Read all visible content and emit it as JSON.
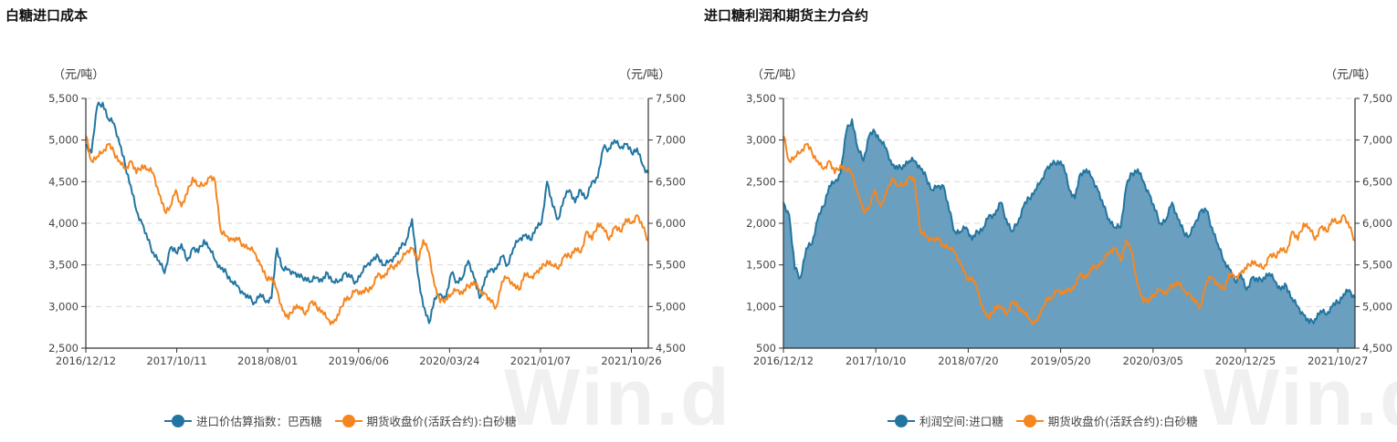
{
  "colors": {
    "blue": "#2275a0",
    "orange": "#f5861f",
    "area": "#6a9fbf",
    "grid": "#d9d9d9",
    "axis": "#333333"
  },
  "watermark": "Win.d",
  "chart_data": [
    {
      "type": "line",
      "title": "白糖进口成本",
      "y_unit_left": "（元/吨）",
      "y_unit_right": "（元/吨）",
      "ylim_left": [
        2500,
        5500
      ],
      "ylim_right": [
        4500,
        7500
      ],
      "yticks_left": [
        "5,500",
        "5,000",
        "4,500",
        "4,000",
        "3,500",
        "3,000",
        "2,500"
      ],
      "yticks_right": [
        "7,500",
        "7,000",
        "6,500",
        "6,000",
        "5,500",
        "5,000",
        "4,500"
      ],
      "x_ticks": [
        "2016/12/12",
        "2017/10/11",
        "2018/08/01",
        "2019/06/06",
        "2020/03/24",
        "2021/01/07",
        "2021/10/26"
      ],
      "grid": true,
      "legend_position": "bottom",
      "series": [
        {
          "name": "进口价估算指数：巴西糖",
          "axis": "left",
          "color": "#2275a0",
          "x_frac": [
            0,
            0.01,
            0.02,
            0.03,
            0.04,
            0.05,
            0.06,
            0.07,
            0.08,
            0.09,
            0.1,
            0.11,
            0.12,
            0.13,
            0.14,
            0.15,
            0.16,
            0.17,
            0.18,
            0.19,
            0.2,
            0.21,
            0.22,
            0.23,
            0.24,
            0.25,
            0.26,
            0.27,
            0.28,
            0.29,
            0.3,
            0.31,
            0.32,
            0.33,
            0.34,
            0.35,
            0.36,
            0.37,
            0.38,
            0.39,
            0.4,
            0.41,
            0.42,
            0.43,
            0.44,
            0.45,
            0.46,
            0.47,
            0.48,
            0.49,
            0.5,
            0.51,
            0.52,
            0.53,
            0.54,
            0.55,
            0.56,
            0.57,
            0.58,
            0.59,
            0.6,
            0.61,
            0.62,
            0.63,
            0.64,
            0.65,
            0.66,
            0.67,
            0.68,
            0.69,
            0.7,
            0.71,
            0.72,
            0.73,
            0.74,
            0.75,
            0.76,
            0.77,
            0.78,
            0.79,
            0.8,
            0.81,
            0.82,
            0.83,
            0.84,
            0.85,
            0.86,
            0.87,
            0.88,
            0.89,
            0.9,
            0.91,
            0.92,
            0.93,
            0.94,
            0.95,
            0.96,
            0.97,
            0.98,
            0.99,
            1.0
          ],
          "values": [
            4950,
            4850,
            5400,
            5450,
            5250,
            5200,
            4950,
            4700,
            4450,
            4150,
            4000,
            3800,
            3650,
            3550,
            3400,
            3700,
            3650,
            3750,
            3550,
            3700,
            3650,
            3800,
            3700,
            3550,
            3450,
            3400,
            3300,
            3250,
            3150,
            3100,
            3050,
            3150,
            3050,
            3100,
            3700,
            3450,
            3450,
            3400,
            3350,
            3350,
            3300,
            3350,
            3300,
            3400,
            3300,
            3300,
            3400,
            3350,
            3300,
            3400,
            3500,
            3550,
            3600,
            3500,
            3550,
            3600,
            3700,
            3800,
            4050,
            3400,
            3000,
            2800,
            3100,
            3150,
            3100,
            3400,
            3300,
            3350,
            3550,
            3350,
            3100,
            3350,
            3450,
            3450,
            3600,
            3500,
            3700,
            3800,
            3850,
            3800,
            3950,
            4000,
            4500,
            4200,
            4050,
            4300,
            4400,
            4250,
            4400,
            4300,
            4500,
            4550,
            4900,
            4900,
            5000,
            4900,
            4950,
            4850,
            4900,
            4700,
            4600
          ]
        },
        {
          "name": "期货收盘价(活跃合约):白砂糖",
          "axis": "right",
          "color": "#f5861f",
          "x_frac": [
            0,
            0.01,
            0.02,
            0.03,
            0.04,
            0.05,
            0.06,
            0.07,
            0.08,
            0.09,
            0.1,
            0.11,
            0.12,
            0.13,
            0.14,
            0.15,
            0.16,
            0.17,
            0.18,
            0.19,
            0.2,
            0.21,
            0.22,
            0.23,
            0.24,
            0.25,
            0.26,
            0.27,
            0.28,
            0.29,
            0.3,
            0.31,
            0.32,
            0.33,
            0.34,
            0.35,
            0.36,
            0.37,
            0.38,
            0.39,
            0.4,
            0.41,
            0.42,
            0.43,
            0.44,
            0.45,
            0.46,
            0.47,
            0.48,
            0.49,
            0.5,
            0.51,
            0.52,
            0.53,
            0.54,
            0.55,
            0.56,
            0.57,
            0.58,
            0.59,
            0.6,
            0.61,
            0.62,
            0.63,
            0.64,
            0.65,
            0.66,
            0.67,
            0.68,
            0.69,
            0.7,
            0.71,
            0.72,
            0.73,
            0.74,
            0.75,
            0.76,
            0.77,
            0.78,
            0.79,
            0.8,
            0.81,
            0.82,
            0.83,
            0.84,
            0.85,
            0.86,
            0.87,
            0.88,
            0.89,
            0.9,
            0.91,
            0.92,
            0.93,
            0.94,
            0.95,
            0.96,
            0.97,
            0.98,
            0.99,
            1.0
          ],
          "values": [
            7050,
            6750,
            6800,
            6850,
            6950,
            6850,
            6750,
            6650,
            6750,
            6600,
            6700,
            6650,
            6600,
            6350,
            6150,
            6200,
            6400,
            6200,
            6350,
            6550,
            6450,
            6450,
            6550,
            6500,
            5900,
            5850,
            5800,
            5800,
            5750,
            5700,
            5650,
            5500,
            5350,
            5350,
            5200,
            4950,
            4850,
            5000,
            5000,
            4900,
            5050,
            5000,
            4950,
            4850,
            4800,
            4900,
            5100,
            5100,
            5200,
            5150,
            5200,
            5250,
            5400,
            5350,
            5450,
            5500,
            5550,
            5650,
            5700,
            5550,
            5800,
            5650,
            5250,
            5050,
            5100,
            5150,
            5200,
            5150,
            5250,
            5300,
            5200,
            5150,
            5050,
            5000,
            5300,
            5350,
            5250,
            5200,
            5400,
            5350,
            5400,
            5450,
            5550,
            5500,
            5450,
            5600,
            5600,
            5700,
            5650,
            5900,
            5800,
            6000,
            5950,
            5800,
            5950,
            5900,
            6050,
            6000,
            6100,
            5950,
            5800
          ]
        }
      ]
    },
    {
      "type": "area",
      "title": "进口糖利润和期货主力合约",
      "y_unit_left": "（元/吨）",
      "y_unit_right": "（元/吨）",
      "ylim_left": [
        500,
        3500
      ],
      "ylim_right": [
        4500,
        7500
      ],
      "yticks_left": [
        "3,500",
        "3,000",
        "2,500",
        "2,000",
        "1,500",
        "1,000",
        "500"
      ],
      "yticks_right": [
        "7,500",
        "7,000",
        "6,500",
        "6,000",
        "5,500",
        "5,000",
        "4,500"
      ],
      "x_ticks": [
        "2016/12/12",
        "2017/10/10",
        "2018/07/20",
        "2019/05/20",
        "2020/03/05",
        "2020/12/25",
        "2021/10/27"
      ],
      "grid": true,
      "legend_position": "bottom",
      "series": [
        {
          "name": "利润空间:进口糖",
          "axis": "left",
          "type": "area",
          "color": "#2275a0",
          "x_frac": [
            0,
            0.01,
            0.02,
            0.03,
            0.04,
            0.05,
            0.06,
            0.07,
            0.08,
            0.09,
            0.1,
            0.11,
            0.12,
            0.13,
            0.14,
            0.15,
            0.16,
            0.17,
            0.18,
            0.19,
            0.2,
            0.21,
            0.22,
            0.23,
            0.24,
            0.25,
            0.26,
            0.27,
            0.28,
            0.29,
            0.3,
            0.31,
            0.32,
            0.33,
            0.34,
            0.35,
            0.36,
            0.37,
            0.38,
            0.39,
            0.4,
            0.41,
            0.42,
            0.43,
            0.44,
            0.45,
            0.46,
            0.47,
            0.48,
            0.49,
            0.5,
            0.51,
            0.52,
            0.53,
            0.54,
            0.55,
            0.56,
            0.57,
            0.58,
            0.59,
            0.6,
            0.61,
            0.62,
            0.63,
            0.64,
            0.65,
            0.66,
            0.67,
            0.68,
            0.69,
            0.7,
            0.71,
            0.72,
            0.73,
            0.74,
            0.75,
            0.76,
            0.77,
            0.78,
            0.79,
            0.8,
            0.81,
            0.82,
            0.83,
            0.84,
            0.85,
            0.86,
            0.87,
            0.88,
            0.89,
            0.9,
            0.91,
            0.92,
            0.93,
            0.94,
            0.95,
            0.96,
            0.97,
            0.98,
            0.99,
            1.0
          ],
          "values": [
            2250,
            2100,
            1450,
            1350,
            1700,
            1750,
            2050,
            2200,
            2450,
            2500,
            2600,
            3100,
            3250,
            2900,
            2750,
            3050,
            3100,
            3000,
            2900,
            2700,
            2650,
            2700,
            2750,
            2750,
            2650,
            2550,
            2400,
            2450,
            2450,
            2150,
            1900,
            1900,
            1950,
            1800,
            1900,
            1950,
            2100,
            2100,
            2250,
            2050,
            1900,
            2000,
            2200,
            2300,
            2400,
            2500,
            2650,
            2700,
            2750,
            2700,
            2400,
            2300,
            2600,
            2650,
            2550,
            2400,
            2200,
            2050,
            1950,
            1950,
            2450,
            2600,
            2650,
            2500,
            2350,
            2150,
            2000,
            2050,
            2250,
            2050,
            1900,
            1850,
            2000,
            2150,
            2150,
            1950,
            1750,
            1550,
            1450,
            1300,
            1400,
            1200,
            1350,
            1300,
            1350,
            1400,
            1300,
            1200,
            1250,
            1100,
            1000,
            900,
            800,
            850,
            950,
            900,
            1000,
            1050,
            1150,
            1200,
            1100
          ]
        },
        {
          "name": "期货收盘价(活跃合约):白砂糖",
          "axis": "right",
          "type": "line",
          "color": "#f5861f",
          "x_frac": [
            0,
            0.01,
            0.02,
            0.03,
            0.04,
            0.05,
            0.06,
            0.07,
            0.08,
            0.09,
            0.1,
            0.11,
            0.12,
            0.13,
            0.14,
            0.15,
            0.16,
            0.17,
            0.18,
            0.19,
            0.2,
            0.21,
            0.22,
            0.23,
            0.24,
            0.25,
            0.26,
            0.27,
            0.28,
            0.29,
            0.3,
            0.31,
            0.32,
            0.33,
            0.34,
            0.35,
            0.36,
            0.37,
            0.38,
            0.39,
            0.4,
            0.41,
            0.42,
            0.43,
            0.44,
            0.45,
            0.46,
            0.47,
            0.48,
            0.49,
            0.5,
            0.51,
            0.52,
            0.53,
            0.54,
            0.55,
            0.56,
            0.57,
            0.58,
            0.59,
            0.6,
            0.61,
            0.62,
            0.63,
            0.64,
            0.65,
            0.66,
            0.67,
            0.68,
            0.69,
            0.7,
            0.71,
            0.72,
            0.73,
            0.74,
            0.75,
            0.76,
            0.77,
            0.78,
            0.79,
            0.8,
            0.81,
            0.82,
            0.83,
            0.84,
            0.85,
            0.86,
            0.87,
            0.88,
            0.89,
            0.9,
            0.91,
            0.92,
            0.93,
            0.94,
            0.95,
            0.96,
            0.97,
            0.98,
            0.99,
            1.0
          ],
          "values": [
            7050,
            6750,
            6800,
            6850,
            6950,
            6850,
            6750,
            6650,
            6750,
            6600,
            6700,
            6650,
            6600,
            6350,
            6150,
            6200,
            6400,
            6200,
            6350,
            6550,
            6450,
            6450,
            6550,
            6500,
            5900,
            5850,
            5800,
            5800,
            5750,
            5700,
            5650,
            5500,
            5350,
            5350,
            5200,
            4950,
            4850,
            5000,
            5000,
            4900,
            5050,
            5000,
            4950,
            4850,
            4800,
            4900,
            5100,
            5100,
            5200,
            5150,
            5200,
            5250,
            5400,
            5350,
            5450,
            5500,
            5550,
            5650,
            5700,
            5550,
            5800,
            5650,
            5250,
            5050,
            5100,
            5150,
            5200,
            5150,
            5250,
            5300,
            5200,
            5150,
            5050,
            5000,
            5300,
            5350,
            5250,
            5200,
            5400,
            5350,
            5400,
            5450,
            5550,
            5500,
            5450,
            5600,
            5600,
            5700,
            5650,
            5900,
            5800,
            6000,
            5950,
            5800,
            5950,
            5900,
            6050,
            6000,
            6100,
            5950,
            5800
          ]
        }
      ]
    }
  ]
}
